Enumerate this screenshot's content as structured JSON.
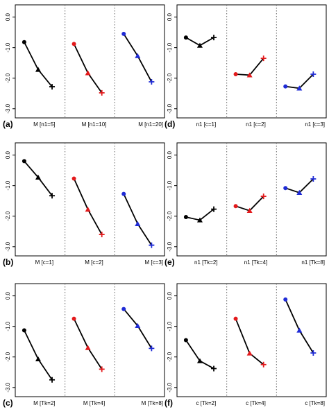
{
  "chart_data": [
    {
      "type": "line",
      "panel_label": "(a)",
      "ylim": [
        -3.3,
        0.4
      ],
      "yticks": [
        "0.0",
        "-1.0",
        "-2.0",
        "-3.0"
      ],
      "ytick_values": [
        0,
        -1,
        -2,
        -3
      ],
      "groups": [
        {
          "label": "M [n1=5]",
          "color": "#000000",
          "values": [
            -0.82,
            -1.72,
            -2.28
          ]
        },
        {
          "label": "M [n1=10]",
          "color": "#e31a1c",
          "values": [
            -0.88,
            -1.83,
            -2.48
          ]
        },
        {
          "label": "M [n1=20]",
          "color": "#1f2bd6",
          "values": [
            -0.55,
            -1.27,
            -2.12
          ]
        }
      ]
    },
    {
      "type": "line",
      "panel_label": "(d)",
      "ylim": [
        -3.3,
        0.4
      ],
      "yticks": [
        "0.0",
        "-1.0",
        "-2.0",
        "-3.0"
      ],
      "ytick_values": [
        0,
        -1,
        -2,
        -3
      ],
      "groups": [
        {
          "label": "n1 [c=1]",
          "color": "#000000",
          "values": [
            -0.67,
            -0.93,
            -0.67
          ]
        },
        {
          "label": "n1 [c=2]",
          "color": "#e31a1c",
          "values": [
            -1.87,
            -1.9,
            -1.35
          ]
        },
        {
          "label": "n1 [c=3]",
          "color": "#1f2bd6",
          "values": [
            -2.27,
            -2.33,
            -1.87
          ]
        }
      ]
    },
    {
      "type": "line",
      "panel_label": "(b)",
      "ylim": [
        -3.3,
        0.4
      ],
      "yticks": [
        "0.0",
        "-1.0",
        "-2.0",
        "-3.0"
      ],
      "ytick_values": [
        0,
        -1,
        -2,
        -3
      ],
      "groups": [
        {
          "label": "M [c=1]",
          "color": "#000000",
          "values": [
            -0.2,
            -0.73,
            -1.33
          ]
        },
        {
          "label": "M [c=2]",
          "color": "#e31a1c",
          "values": [
            -0.77,
            -1.78,
            -2.6
          ]
        },
        {
          "label": "M [c=3]",
          "color": "#1f2bd6",
          "values": [
            -1.27,
            -2.25,
            -2.95
          ]
        }
      ]
    },
    {
      "type": "line",
      "panel_label": "(e)",
      "ylim": [
        -3.3,
        0.4
      ],
      "yticks": [
        "0.0",
        "-1.0",
        "-2.0",
        "-3.0"
      ],
      "ytick_values": [
        0,
        -1,
        -2,
        -3
      ],
      "groups": [
        {
          "label": "n1 [Tk=2]",
          "color": "#000000",
          "values": [
            -2.03,
            -2.13,
            -1.77
          ]
        },
        {
          "label": "n1 [Tk=4]",
          "color": "#e31a1c",
          "values": [
            -1.67,
            -1.82,
            -1.35
          ]
        },
        {
          "label": "n1 [Tk=8]",
          "color": "#1f2bd6",
          "values": [
            -1.08,
            -1.23,
            -0.78
          ]
        }
      ]
    },
    {
      "type": "line",
      "panel_label": "(c)",
      "ylim": [
        -3.3,
        0.4
      ],
      "yticks": [
        "0.0",
        "-1.0",
        "-2.0",
        "-3.0"
      ],
      "ytick_values": [
        0,
        -1,
        -2,
        -3
      ],
      "groups": [
        {
          "label": "M [Tk=2]",
          "color": "#000000",
          "values": [
            -1.13,
            -2.07,
            -2.75
          ]
        },
        {
          "label": "M [Tk=4]",
          "color": "#e31a1c",
          "values": [
            -0.75,
            -1.7,
            -2.4
          ]
        },
        {
          "label": "M [Tk=8]",
          "color": "#1f2bd6",
          "values": [
            -0.43,
            -0.98,
            -1.72
          ]
        }
      ]
    },
    {
      "type": "line",
      "panel_label": "(f)",
      "ylim": [
        -3.3,
        0.4
      ],
      "yticks": [
        "0.0",
        "-1.0",
        "-2.0",
        "-3.0"
      ],
      "ytick_values": [
        0,
        -1,
        -2,
        -3
      ],
      "groups": [
        {
          "label": "c [Tk=2]",
          "color": "#000000",
          "values": [
            -1.45,
            -2.13,
            -2.38
          ]
        },
        {
          "label": "c [Tk=4]",
          "color": "#e31a1c",
          "values": [
            -0.75,
            -1.88,
            -2.25
          ]
        },
        {
          "label": "c [Tk=8]",
          "color": "#1f2bd6",
          "values": [
            -0.12,
            -1.13,
            -1.87
          ]
        }
      ]
    }
  ]
}
